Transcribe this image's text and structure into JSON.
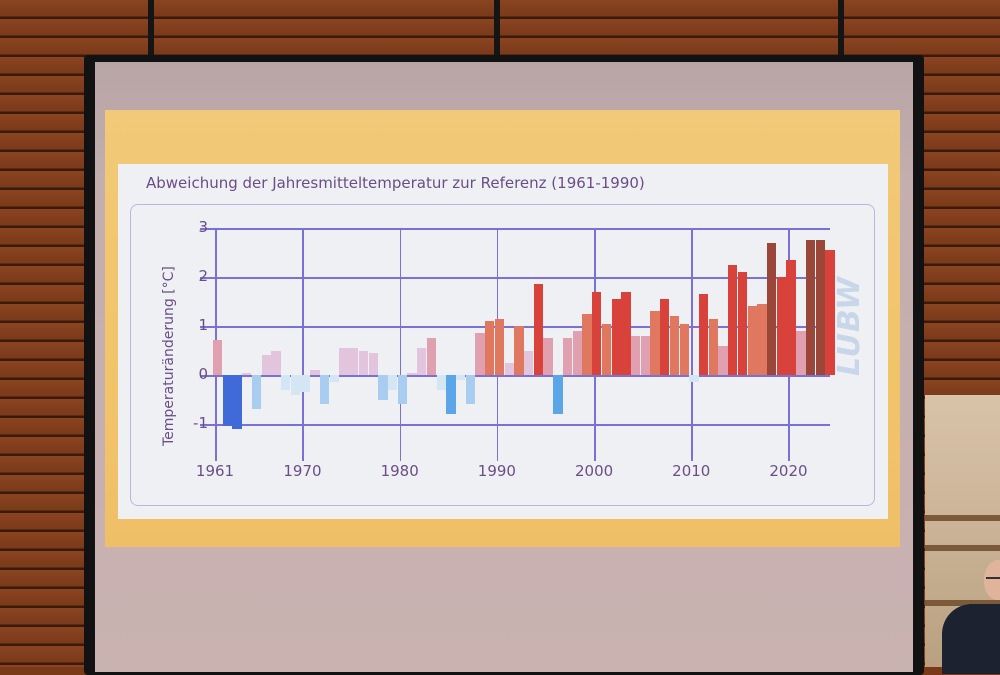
{
  "slide": {
    "title": "Abweichung der Jahresmitteltemperatur zur Referenz (1961-1990)",
    "logo_text": "LUBW"
  },
  "colors": {
    "title_text": "#6b4e86",
    "grid": "#7b70d6",
    "slide_border": "#f1c978",
    "slide_bg": "#eef0f4",
    "strong_warm": "#d9423a",
    "dark_warm": "#9a4638",
    "mid_warm": "#e07860",
    "light_warm": "#e0a0b0",
    "pale_warm": "#e2c4dc",
    "strong_cold": "#3f6ad8",
    "mid_cold": "#5aa6e8",
    "light_cold": "#a8cdf0",
    "pale_cold": "#d4e6f4"
  },
  "chart_data": {
    "type": "bar",
    "title": "Abweichung der Jahresmitteltemperatur zur Referenz (1961-1990)",
    "xlabel": "",
    "ylabel": "Temperaturänderung [°C]",
    "ylim": [
      -1.5,
      3
    ],
    "yticks": [
      3,
      2,
      1,
      0,
      -1
    ],
    "ytick_labels": [
      "3",
      "2",
      "1",
      "0",
      "-1"
    ],
    "xticks": [
      1961,
      1970,
      1980,
      1990,
      2000,
      2010,
      2020
    ],
    "xtick_labels": [
      "1961",
      "1970",
      "1980",
      "1990",
      "2000",
      "2010",
      "2020"
    ],
    "grid": true,
    "legend": null,
    "categories": [
      1961,
      1962,
      1963,
      1964,
      1965,
      1966,
      1967,
      1968,
      1969,
      1970,
      1971,
      1972,
      1973,
      1974,
      1975,
      1976,
      1977,
      1978,
      1979,
      1980,
      1981,
      1982,
      1983,
      1984,
      1985,
      1986,
      1987,
      1988,
      1989,
      1990,
      1991,
      1992,
      1993,
      1994,
      1995,
      1996,
      1997,
      1998,
      1999,
      2000,
      2001,
      2002,
      2003,
      2004,
      2005,
      2006,
      2007,
      2008,
      2009,
      2010,
      2011,
      2012,
      2013,
      2014,
      2015,
      2016,
      2017,
      2018,
      2019,
      2020,
      2021,
      2022,
      2023,
      2024
    ],
    "values": [
      0.72,
      -1.05,
      -1.1,
      0.05,
      -0.7,
      0.4,
      0.5,
      -0.3,
      -0.4,
      -0.35,
      0.1,
      -0.6,
      -0.15,
      0.55,
      0.55,
      0.5,
      0.45,
      -0.5,
      -0.3,
      -0.6,
      0.05,
      0.55,
      0.75,
      -0.3,
      -0.8,
      -0.1,
      -0.6,
      0.85,
      1.1,
      1.15,
      0.25,
      1.0,
      0.5,
      1.85,
      0.75,
      -0.8,
      0.75,
      0.9,
      1.25,
      1.7,
      1.05,
      1.55,
      1.7,
      0.8,
      0.8,
      1.3,
      1.55,
      1.2,
      1.05,
      -0.15,
      1.65,
      1.15,
      0.6,
      2.25,
      2.1,
      1.4,
      1.45,
      2.7,
      2.0,
      2.35,
      0.9,
      2.75,
      2.75,
      2.55
    ],
    "color_scale": "diverging blue (cold) to red (warm); saturation by magnitude"
  }
}
